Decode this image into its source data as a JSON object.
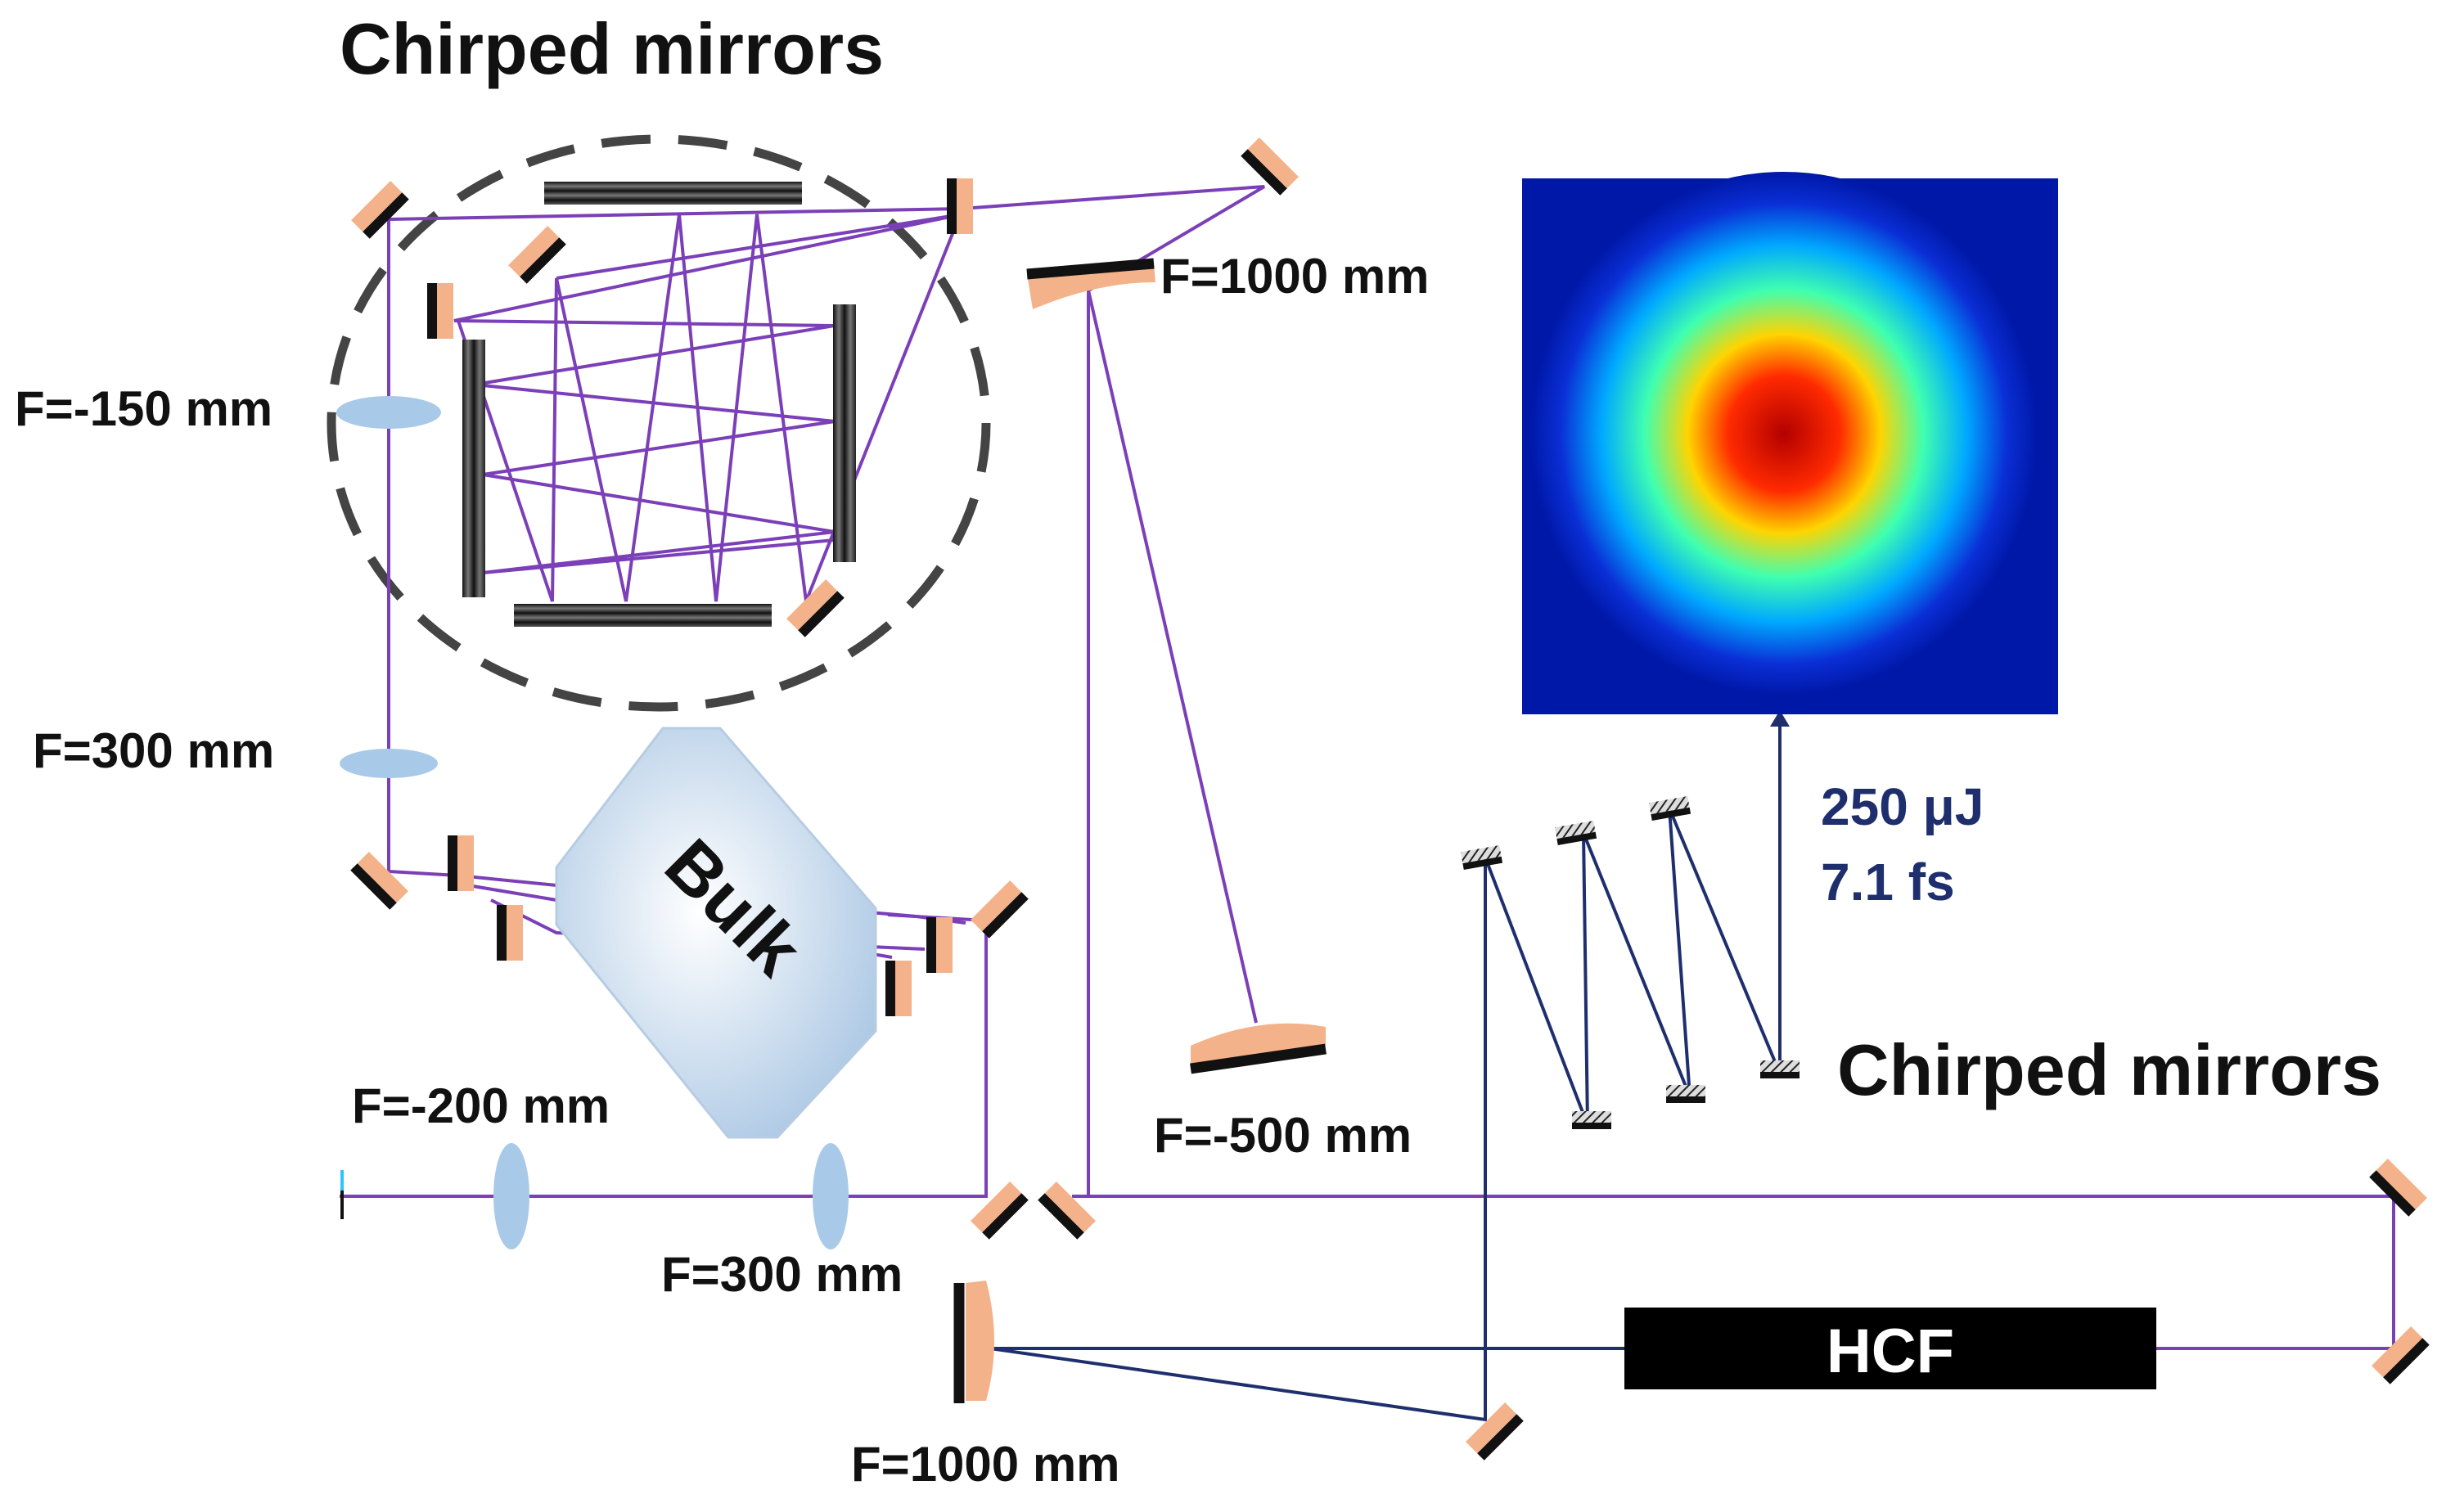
{
  "labels": {
    "chirped_mirrors_top": "Chirped mirrors",
    "chirped_mirrors_right": "Chirped mirrors",
    "f_neg150": "F=-150 mm",
    "f_300_left": "F=300 mm",
    "f_1000_top": "F=1000 mm",
    "f_neg200": "F=-200 mm",
    "f_300_bottom": "F=300 mm",
    "f_neg500": "F=-500 mm",
    "f_1000_bottom": "F=1000 mm",
    "bulk": "Bulk",
    "hcf": "HCF",
    "energy": "250 μJ",
    "duration": "7.1 fs"
  },
  "colors": {
    "beam_purple": "#7b3fb8",
    "beam_navy": "#1f2f6e",
    "mirror_mount": "#f4b28a",
    "mirror_face": "#111111",
    "lens": "#a9c9e8",
    "bulk": "#c9dcef",
    "hcf": "#000000",
    "dashed_circle": "#444444",
    "label_text": "#111111",
    "output_text": "#1f2f6e"
  },
  "icons": {
    "flat_mirror": "flat-mirror-icon",
    "curved_mirror": "curved-mirror-icon",
    "lens": "lens-icon",
    "beam_profile": "beam-profile-image"
  }
}
